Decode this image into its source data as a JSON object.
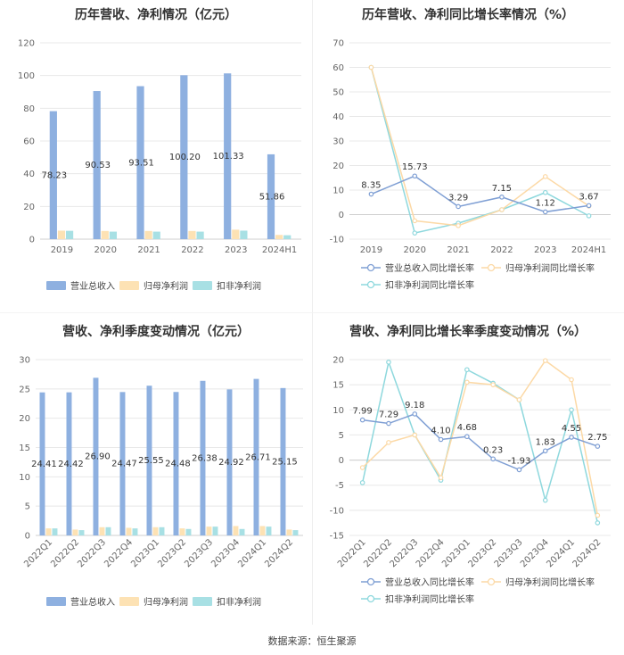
{
  "source": "数据来源：恒生聚源",
  "chart_data": [
    {
      "id": "annual-bar",
      "type": "bar",
      "title": "历年营收、净利情况（亿元）",
      "categories": [
        "2019",
        "2020",
        "2021",
        "2022",
        "2023",
        "2024H1"
      ],
      "ylim": [
        0,
        120
      ],
      "yticks": [
        0,
        20,
        40,
        60,
        80,
        100,
        120
      ],
      "series": [
        {
          "name": "营业总收入",
          "color": "#8eb0e0",
          "values": [
            78.23,
            90.53,
            93.51,
            100.2,
            101.33,
            51.86
          ],
          "labels": [
            "78.23",
            "90.53",
            "93.51",
            "100.20",
            "101.33",
            "51.86"
          ]
        },
        {
          "name": "归母净利润",
          "color": "#fde2b4",
          "values": [
            5.2,
            5.0,
            5.0,
            5.0,
            5.8,
            2.6
          ]
        },
        {
          "name": "扣非净利润",
          "color": "#a8e0e4",
          "values": [
            5.1,
            4.6,
            4.6,
            4.6,
            5.2,
            2.4
          ]
        }
      ]
    },
    {
      "id": "annual-line",
      "type": "line",
      "title": "历年营收、净利同比增长率情况（%）",
      "categories": [
        "2019",
        "2020",
        "2021",
        "2022",
        "2023",
        "2024H1"
      ],
      "ylim": [
        -10,
        70
      ],
      "yticks": [
        -10,
        0,
        10,
        20,
        30,
        40,
        50,
        60,
        70
      ],
      "series": [
        {
          "name": "营业总收入同比增长率",
          "color": "#7f9fd4",
          "values": [
            8.35,
            15.73,
            3.29,
            7.15,
            1.12,
            3.67
          ],
          "labels": [
            "8.35",
            "15.73",
            "3.29",
            "7.15",
            "1.12",
            "3.67"
          ]
        },
        {
          "name": "归母净利润同比增长率",
          "color": "#fcd9a6",
          "values": [
            60.0,
            -2.5,
            -4.5,
            2.0,
            15.5,
            3.5
          ]
        },
        {
          "name": "扣非净利润同比增长率",
          "color": "#8ed8dd",
          "values": [
            60.0,
            -7.5,
            -3.5,
            2.0,
            9.0,
            -0.5
          ]
        }
      ]
    },
    {
      "id": "quarter-bar",
      "type": "bar",
      "title": "营收、净利季度变动情况（亿元）",
      "categories": [
        "2022Q1",
        "2022Q2",
        "2022Q3",
        "2022Q4",
        "2023Q1",
        "2023Q2",
        "2023Q3",
        "2023Q4",
        "2024Q1",
        "2024Q2"
      ],
      "ylim": [
        0,
        30
      ],
      "yticks": [
        0,
        5,
        10,
        15,
        20,
        25,
        30
      ],
      "series": [
        {
          "name": "营业总收入",
          "color": "#8eb0e0",
          "values": [
            24.41,
            24.42,
            26.9,
            24.47,
            25.55,
            24.48,
            26.38,
            24.92,
            26.71,
            25.15
          ],
          "labels": [
            "24.41",
            "24.42",
            "26.90",
            "24.47",
            "25.55",
            "24.48",
            "26.38",
            "24.92",
            "26.71",
            "25.15"
          ]
        },
        {
          "name": "归母净利润",
          "color": "#fde2b4",
          "values": [
            1.2,
            1.0,
            1.4,
            1.3,
            1.4,
            1.2,
            1.5,
            1.6,
            1.6,
            1.0
          ]
        },
        {
          "name": "扣非净利润",
          "color": "#a8e0e4",
          "values": [
            1.2,
            0.9,
            1.4,
            1.2,
            1.4,
            1.1,
            1.5,
            1.1,
            1.5,
            0.9
          ]
        }
      ]
    },
    {
      "id": "quarter-line",
      "type": "line",
      "title": "营收、净利同比增长率季度变动情况（%）",
      "categories": [
        "2022Q1",
        "2022Q2",
        "2022Q3",
        "2022Q4",
        "2023Q1",
        "2023Q2",
        "2023Q3",
        "2023Q4",
        "2024Q1",
        "2024Q2"
      ],
      "ylim": [
        -15,
        20
      ],
      "yticks": [
        -15,
        -10,
        -5,
        0,
        5,
        10,
        15,
        20
      ],
      "series": [
        {
          "name": "营业总收入同比增长率",
          "color": "#7f9fd4",
          "values": [
            7.99,
            7.29,
            9.18,
            4.1,
            4.68,
            0.23,
            -1.93,
            1.83,
            4.55,
            2.75
          ],
          "labels": [
            "7.99",
            "7.29",
            "9.18",
            "4.10",
            "4.68",
            "0.23",
            "-1.93",
            "1.83",
            "4.55",
            "2.75"
          ]
        },
        {
          "name": "归母净利润同比增长率",
          "color": "#fcd9a6",
          "values": [
            -1.5,
            3.5,
            5.0,
            -3.5,
            15.5,
            15.0,
            12.0,
            19.8,
            16.0,
            -11.0
          ]
        },
        {
          "name": "扣非净利润同比增长率",
          "color": "#8ed8dd",
          "values": [
            -4.5,
            19.5,
            5.0,
            -4.0,
            18.0,
            15.3,
            12.0,
            -8.0,
            10.0,
            -12.5
          ]
        }
      ]
    }
  ]
}
